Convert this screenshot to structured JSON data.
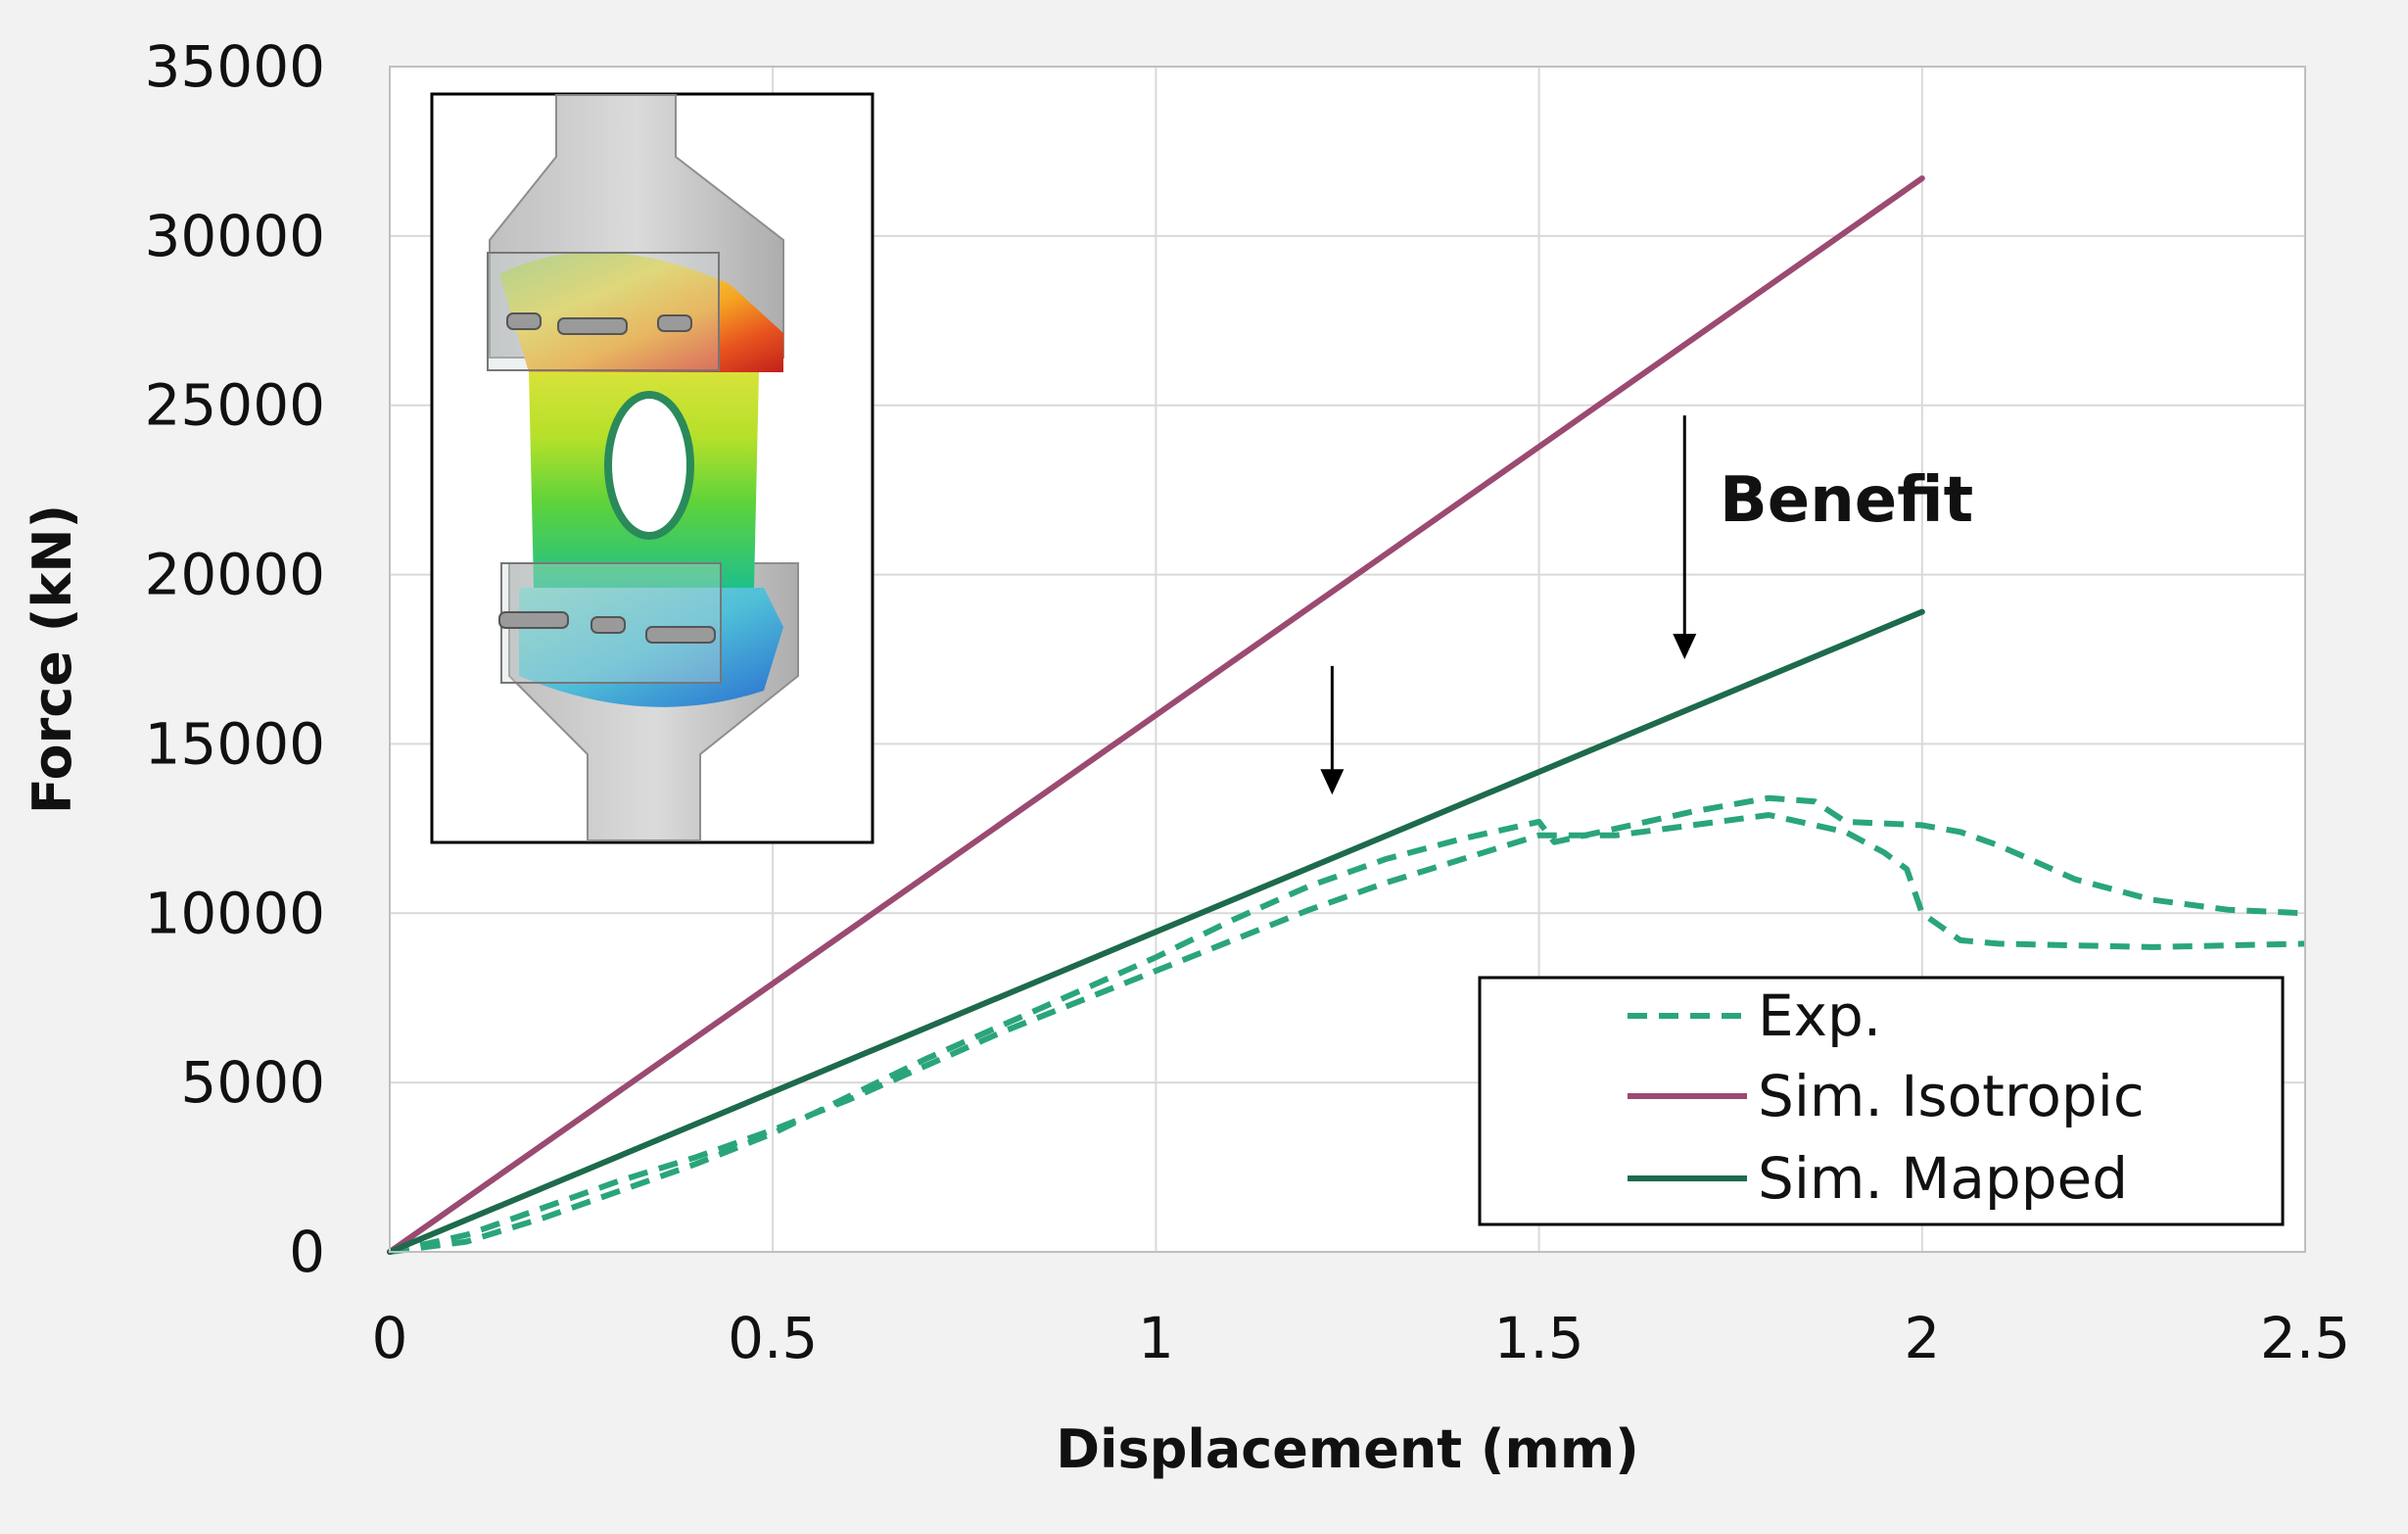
{
  "chart_data": {
    "type": "line",
    "title": "",
    "xlabel": "Displacement (mm)",
    "ylabel": "Force (kN)",
    "xlim": [
      0,
      2.5
    ],
    "ylim": [
      0,
      35000
    ],
    "x_ticks": [
      "0",
      "0.5",
      "1",
      "1.5",
      "2",
      "2.5"
    ],
    "y_ticks": [
      "0",
      "5000",
      "10000",
      "15000",
      "20000",
      "25000",
      "30000",
      "35000"
    ],
    "grid": true,
    "legend_position": "bottom-right",
    "series": [
      {
        "name": "Exp.",
        "color": "#2aa57a",
        "style": "dashed",
        "points": [
          [
            0,
            0
          ],
          [
            0.1,
            300
          ],
          [
            0.2,
            1000
          ],
          [
            0.3,
            1800
          ],
          [
            0.4,
            2600
          ],
          [
            0.5,
            3500
          ],
          [
            0.6,
            4600
          ],
          [
            0.7,
            5700
          ],
          [
            0.8,
            6700
          ],
          [
            0.9,
            7700
          ],
          [
            1.0,
            8700
          ],
          [
            1.1,
            9800
          ],
          [
            1.2,
            10800
          ],
          [
            1.3,
            11600
          ],
          [
            1.4,
            12200
          ],
          [
            1.5,
            12700
          ],
          [
            1.52,
            12100
          ],
          [
            1.6,
            12500
          ],
          [
            1.7,
            13000
          ],
          [
            1.8,
            13400
          ],
          [
            1.86,
            13300
          ],
          [
            1.9,
            12700
          ],
          [
            2.0,
            12600
          ],
          [
            2.05,
            12400
          ],
          [
            2.1,
            12000
          ],
          [
            2.2,
            11000
          ],
          [
            2.3,
            10400
          ],
          [
            2.4,
            10100
          ],
          [
            2.5,
            10000
          ]
        ]
      },
      {
        "name": "",
        "color": "#2aa57a",
        "style": "dashed",
        "points": [
          [
            0,
            0
          ],
          [
            0.1,
            500
          ],
          [
            0.2,
            1300
          ],
          [
            0.3,
            2100
          ],
          [
            0.4,
            2800
          ],
          [
            0.5,
            3600
          ],
          [
            0.6,
            4500
          ],
          [
            0.7,
            5500
          ],
          [
            0.8,
            6500
          ],
          [
            0.9,
            7400
          ],
          [
            1.0,
            8300
          ],
          [
            1.1,
            9200
          ],
          [
            1.2,
            10100
          ],
          [
            1.3,
            10900
          ],
          [
            1.4,
            11600
          ],
          [
            1.5,
            12300
          ],
          [
            1.6,
            12300
          ],
          [
            1.7,
            12600
          ],
          [
            1.8,
            12900
          ],
          [
            1.9,
            12400
          ],
          [
            1.95,
            11800
          ],
          [
            1.98,
            11300
          ],
          [
            2.0,
            10000
          ],
          [
            2.05,
            9200
          ],
          [
            2.1,
            9100
          ],
          [
            2.3,
            9000
          ],
          [
            2.5,
            9100
          ]
        ]
      },
      {
        "name": "Sim. Isotropic",
        "color": "#9b4a72",
        "style": "solid",
        "points": [
          [
            0,
            0
          ],
          [
            2.0,
            31700
          ]
        ]
      },
      {
        "name": "Sim. Mapped",
        "color": "#1d6a4c",
        "style": "solid",
        "points": [
          [
            0,
            0
          ],
          [
            2.0,
            18900
          ]
        ]
      }
    ],
    "legend": [
      "Exp.",
      "Sim. Isotropic",
      "Sim. Mapped"
    ],
    "annotations": [
      {
        "text": "Benefit"
      }
    ],
    "arrows": [
      {
        "x": 1.23,
        "from_y": 17300,
        "to_y": 13500
      },
      {
        "x": 1.69,
        "from_y": 24700,
        "to_y": 17500
      }
    ],
    "inset_image": "simulation-contour-plot"
  }
}
